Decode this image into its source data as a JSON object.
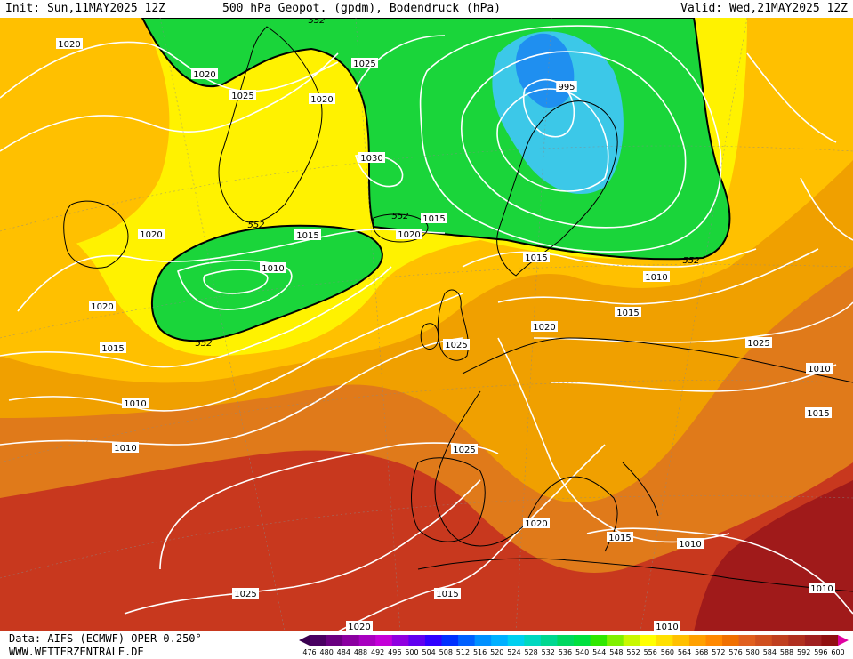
{
  "header": {
    "init": "Init: Sun,11MAY2025 12Z",
    "title": "500 hPa Geopot. (gpdm), Bodendruck (hPa)",
    "valid": "Valid: Wed,21MAY2025 12Z"
  },
  "footer": {
    "data_source": "Data: AIFS (ECMWF) OPER 0.250°",
    "website": "WWW.WETTERZENTRALE.DE"
  },
  "colorbar": {
    "ticks": [
      "476",
      "480",
      "484",
      "488",
      "492",
      "496",
      "500",
      "504",
      "508",
      "512",
      "516",
      "520",
      "524",
      "528",
      "532",
      "536",
      "540",
      "544",
      "548",
      "552",
      "556",
      "560",
      "564",
      "568",
      "572",
      "576",
      "580",
      "584",
      "588",
      "592",
      "596",
      "600"
    ],
    "colors": [
      "#4a0062",
      "#6a0080",
      "#8a00a0",
      "#a800c0",
      "#c400d8",
      "#9000e0",
      "#6000f0",
      "#3000ff",
      "#0030ff",
      "#0060ff",
      "#0090ff",
      "#00b0ff",
      "#00d0f0",
      "#00d8c0",
      "#00d890",
      "#00d860",
      "#00e040",
      "#30e800",
      "#80f000",
      "#c8f800",
      "#ffff00",
      "#ffe000",
      "#ffc000",
      "#ffa000",
      "#ff8800",
      "#f07000",
      "#e06020",
      "#d05020",
      "#c04020",
      "#b03020",
      "#a02020",
      "#901010"
    ],
    "arrow_left_color": "#3a0050",
    "arrow_right_color": "#e000a0"
  },
  "isobar_labels": [
    "1020",
    "1020",
    "1025",
    "1025",
    "1020",
    "1020",
    "1030",
    "995",
    "1020",
    "1015",
    "1010",
    "1020",
    "1025",
    "1015",
    "1010",
    "1015",
    "1020",
    "1015",
    "1010",
    "1015",
    "1025",
    "1010",
    "1015",
    "1025",
    "1020",
    "1015",
    "1010",
    "1015",
    "1010",
    "1025",
    "1020",
    "1010",
    "1010"
  ],
  "geopotential_labels": [
    "552",
    "552",
    "552",
    "552",
    "552"
  ],
  "colors": {
    "green": "#1ad53a",
    "green_light": "#46e24a",
    "blue": "#1f8ff0",
    "cyan": "#3cc8e8",
    "yellow": "#fff200",
    "gold": "#ffc000",
    "orange": "#f0a000",
    "orange_dark": "#e07a1a",
    "red": "#c8381e",
    "red_dark": "#a01a1a"
  }
}
